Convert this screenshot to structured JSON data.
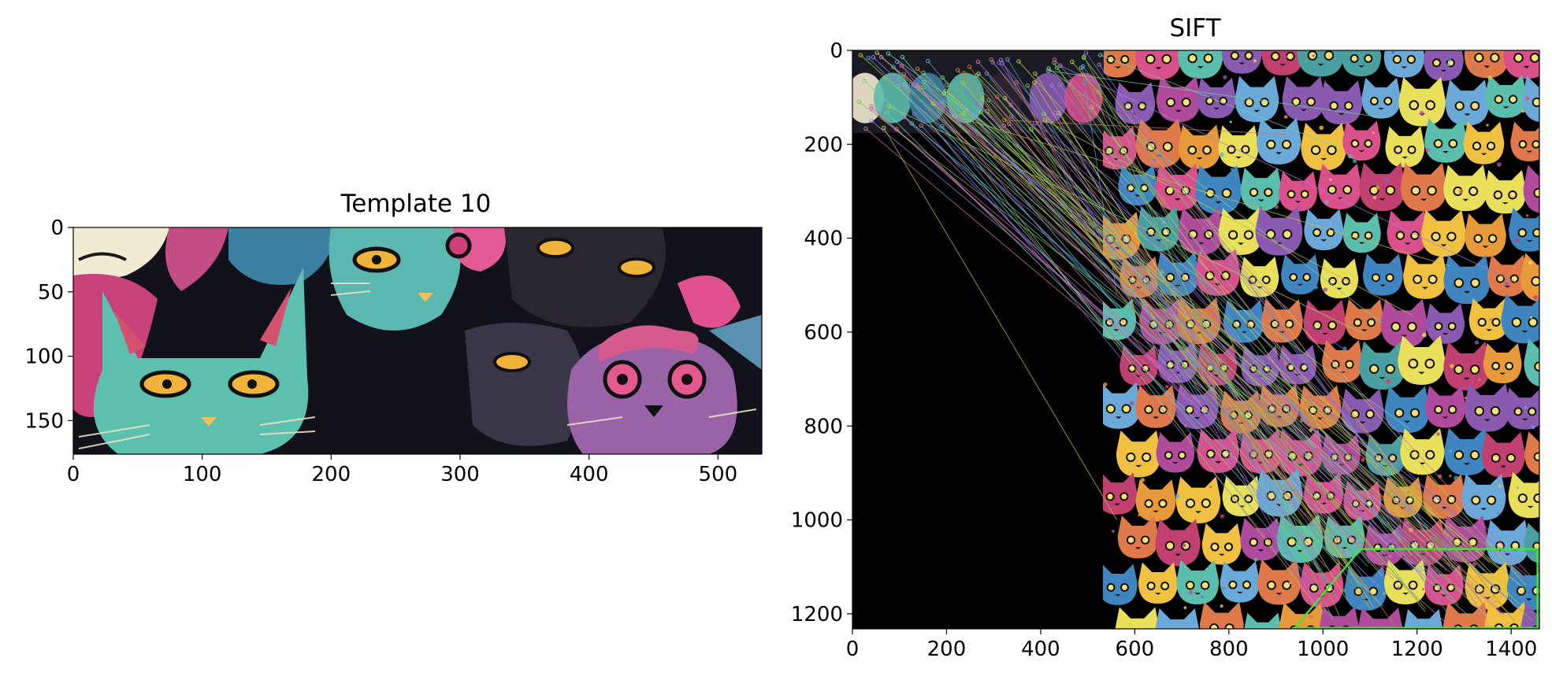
{
  "chart_data": [
    {
      "type": "image",
      "title": "Template 10",
      "xlim": [
        0,
        534
      ],
      "ylim": [
        176,
        0
      ],
      "xticks": [
        0,
        100,
        200,
        300,
        400,
        500
      ],
      "yticks": [
        0,
        50,
        100,
        150
      ],
      "grid": false,
      "legend": "none"
    },
    {
      "type": "image",
      "title": "SIFT",
      "xlim": [
        0,
        1460
      ],
      "ylim": [
        1232,
        0
      ],
      "xticks": [
        0,
        200,
        400,
        600,
        800,
        1000,
        1200,
        1400
      ],
      "yticks": [
        0,
        200,
        400,
        600,
        800,
        1000,
        1200
      ],
      "grid": false,
      "legend": "none",
      "template_region": {
        "x": [
          0,
          534
        ],
        "y": [
          0,
          176
        ]
      },
      "match_box": {
        "color": "#46e03c",
        "points": [
          [
            940,
            1230
          ],
          [
            1080,
            1062
          ],
          [
            1456,
            1062
          ],
          [
            1456,
            1230
          ]
        ]
      },
      "match_count": 110
    }
  ],
  "colors": {
    "axis": "#000000",
    "teal_cat": "#5bbdab",
    "pink_cat": "#d9508a",
    "purple_cat": "#8a5ab0",
    "yellow_eye": "#f0b43a",
    "background": "#0b0b10",
    "match_box": "#46e03c"
  }
}
